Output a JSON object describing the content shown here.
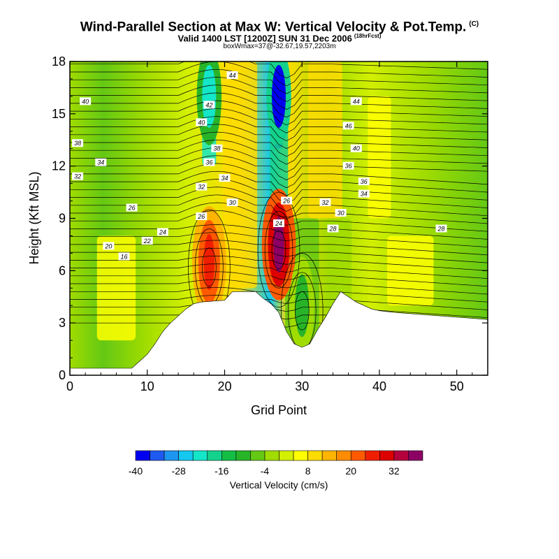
{
  "title": "Wind-Parallel Section at Max W: Vertical Velocity & Pot.Temp.",
  "title_mark": "(C)",
  "subtitle": "Valid 1400 LST [1200Z] SUN 31 Dec 2006",
  "subtitle_note": "(18hrFcst)",
  "subtitle2": "boxWmax=37@-32.67,19.57,2203m",
  "chart_data": {
    "type": "heatmap",
    "xlabel": "Grid Point",
    "ylabel": "Height (Kft MSL)",
    "xlim": [
      0,
      54
    ],
    "ylim": [
      0,
      18
    ],
    "x_ticks": [
      0,
      10,
      20,
      30,
      40,
      50
    ],
    "y_ticks": [
      0,
      3,
      6,
      9,
      12,
      15,
      18
    ],
    "colorbar": {
      "title": "Vertical Velocity (cm/s)",
      "tick_labels": [
        "-40",
        "-28",
        "-16",
        "-4",
        "8",
        "20",
        "32"
      ],
      "bins": 18,
      "colors": [
        "#0000f0",
        "#1e5af0",
        "#1e96f0",
        "#14c8f0",
        "#14e6c8",
        "#14d28c",
        "#14be46",
        "#28b428",
        "#64c814",
        "#a0dc00",
        "#d2f000",
        "#ffff00",
        "#ffdc00",
        "#ffb400",
        "#ff8c00",
        "#ff5a00",
        "#f01e00",
        "#dc0000",
        "#b4003c",
        "#8c0064"
      ]
    },
    "updraft_cores": [
      {
        "x": 18,
        "height_kft": 6.5,
        "w_cms": 25
      },
      {
        "x": 27,
        "height_kft": 7.5,
        "w_cms": 37
      }
    ],
    "downdraft_cores": [
      {
        "x": 27,
        "height_kft": 16,
        "w_cms": -40
      },
      {
        "x": 18,
        "height_kft": 16,
        "w_cms": -24
      },
      {
        "x": 30,
        "height_kft": 4,
        "w_cms": -12
      }
    ],
    "terrain_kft": [
      [
        0,
        0.4
      ],
      [
        8,
        0.4
      ],
      [
        9,
        0.8
      ],
      [
        10,
        1.2
      ],
      [
        11,
        1.8
      ],
      [
        12,
        2.5
      ],
      [
        13,
        3.0
      ],
      [
        14,
        3.4
      ],
      [
        15,
        3.8
      ],
      [
        16,
        4.1
      ],
      [
        17,
        4.2
      ],
      [
        20,
        4.3
      ],
      [
        21,
        4.8
      ],
      [
        24,
        4.8
      ],
      [
        25,
        4.4
      ],
      [
        26,
        4.1
      ],
      [
        27,
        3.6
      ],
      [
        28,
        2.5
      ],
      [
        29,
        1.8
      ],
      [
        30,
        1.6
      ],
      [
        31,
        1.8
      ],
      [
        32,
        2.6
      ],
      [
        33,
        3.3
      ],
      [
        34,
        4.1
      ],
      [
        35,
        4.8
      ],
      [
        36,
        4.5
      ],
      [
        37,
        4.2
      ],
      [
        38,
        4.0
      ],
      [
        39,
        3.8
      ],
      [
        40,
        3.7
      ],
      [
        42,
        3.6
      ],
      [
        48,
        3.4
      ],
      [
        54,
        3.2
      ]
    ],
    "contour_labels": [
      {
        "text": "44",
        "x": 21,
        "y": 17.2
      },
      {
        "text": "40",
        "x": 2,
        "y": 15.7
      },
      {
        "text": "42",
        "x": 18,
        "y": 15.5
      },
      {
        "text": "44",
        "x": 37,
        "y": 15.7
      },
      {
        "text": "40",
        "x": 17,
        "y": 14.5
      },
      {
        "text": "46",
        "x": 36,
        "y": 14.3
      },
      {
        "text": "38",
        "x": 1,
        "y": 13.3
      },
      {
        "text": "38",
        "x": 19,
        "y": 13.0
      },
      {
        "text": "40",
        "x": 37,
        "y": 13.0
      },
      {
        "text": "34",
        "x": 4,
        "y": 12.2
      },
      {
        "text": "36",
        "x": 18,
        "y": 12.2
      },
      {
        "text": "36",
        "x": 36,
        "y": 12.0
      },
      {
        "text": "32",
        "x": 1,
        "y": 11.4
      },
      {
        "text": "34",
        "x": 20,
        "y": 11.3
      },
      {
        "text": "36",
        "x": 38,
        "y": 11.1
      },
      {
        "text": "32",
        "x": 17,
        "y": 10.8
      },
      {
        "text": "34",
        "x": 38,
        "y": 10.4
      },
      {
        "text": "30",
        "x": 21,
        "y": 9.9
      },
      {
        "text": "26",
        "x": 28,
        "y": 10.0
      },
      {
        "text": "32",
        "x": 33,
        "y": 9.9
      },
      {
        "text": "26",
        "x": 8,
        "y": 9.6
      },
      {
        "text": "30",
        "x": 35,
        "y": 9.3
      },
      {
        "text": "26",
        "x": 17,
        "y": 9.1
      },
      {
        "text": "24",
        "x": 27,
        "y": 8.7
      },
      {
        "text": "28",
        "x": 34,
        "y": 8.4
      },
      {
        "text": "28",
        "x": 48,
        "y": 8.4
      },
      {
        "text": "24",
        "x": 12,
        "y": 8.2
      },
      {
        "text": "22",
        "x": 10,
        "y": 7.7
      },
      {
        "text": "20",
        "x": 5,
        "y": 7.4
      },
      {
        "text": "16",
        "x": 7,
        "y": 6.8
      }
    ]
  }
}
